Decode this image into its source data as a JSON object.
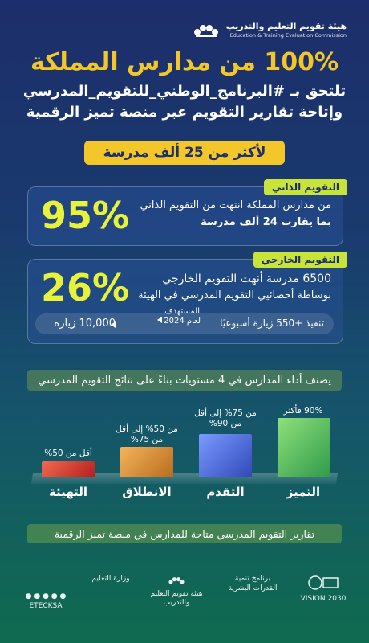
{
  "brand": {
    "name": "هيئة تقويم التعليم والتدريب",
    "sub": "Education & Training Evaluation Commission"
  },
  "headline": {
    "title": "100% من مدارس المملكة",
    "line1": "تلتحق بـ #البرنامج_الوطني_للتقويم_المدرسي",
    "line2": "وإتاحة تقارير التقويم عبر منصة تميز الرقمية"
  },
  "highlight": "لأكثر من 25 ألف مدرسة",
  "self_eval": {
    "tag": "التقويم الذاتي",
    "percent": "95%",
    "line1": "من مدارس المملكة انتهت من التقويم الذاتي",
    "line2": "بما يقارب 24 ألف مدرسة"
  },
  "external_eval": {
    "tag": "التقويم الخارجي",
    "percent": "26%",
    "line1": "6500 مدرسة أنهت التقويم الخارجي",
    "line2": "بوساطة أخصائيي التقويم المدرسي في الهيئة"
  },
  "visits": {
    "weekly": "تنفيذ +550 زيارة أسبوعيًا",
    "target_label": "المستهدف",
    "target_year": "لعام 2024",
    "target_value": "10,000 زيارة"
  },
  "levels_title": "يصنف أداء المدارس في 4 مستويات بناءً على نتائج التقويم المدرسي",
  "levels": [
    {
      "name": "التميز",
      "range": "90% فأكثر",
      "color": "#3fae5a"
    },
    {
      "name": "التقدم",
      "range": "من 75% إلى أقل من 90%",
      "color": "#3a5fd0"
    },
    {
      "name": "الانطلاق",
      "range": "من 50% إلى أقل من 75%",
      "color": "#d08a2a"
    },
    {
      "name": "التهيئة",
      "range": "أقل من 50%",
      "color": "#d0302a"
    }
  ],
  "footer_note": "تقارير التقويم المدرسي متاحة للمدارس في منصة تميز الرقمية",
  "partners": {
    "vision": "VISION 2030",
    "program": "برنامج تنمية القدرات البشرية",
    "etec": "هيئة تقويم التعليم والتدريب",
    "moe": "وزارة التعليم",
    "handle": "ETECKSA"
  }
}
